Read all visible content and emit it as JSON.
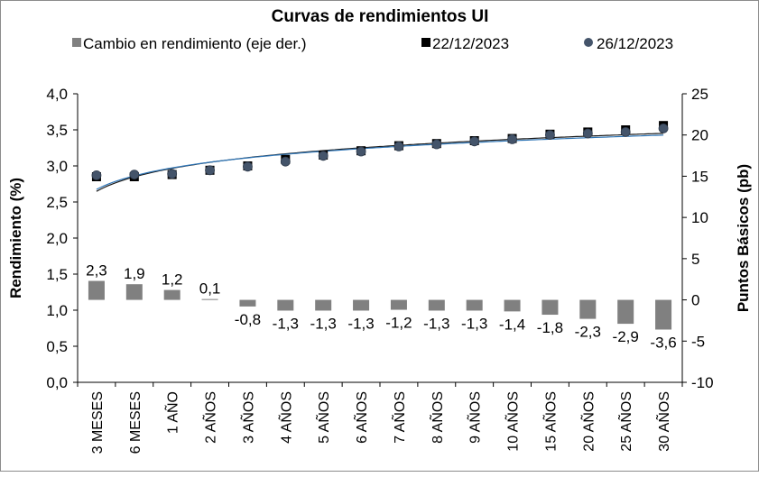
{
  "chart_data": {
    "type": "bar",
    "title": "Curvas de rendimientos UI",
    "ylabel": "Rendimiento (%)",
    "y2label": "Puntos Básicos (pb)",
    "ylim": [
      0,
      4
    ],
    "y2lim": [
      -10,
      25
    ],
    "ytick_labels": [
      "0,0",
      "0,5",
      "1,0",
      "1,5",
      "2,0",
      "2,5",
      "3,0",
      "3,5",
      "4,0"
    ],
    "y2tick_labels": [
      "-10",
      "-5",
      "0",
      "5",
      "10",
      "15",
      "20",
      "25"
    ],
    "categories": [
      "3 MESES",
      "6 MESES",
      "1 AÑO",
      "2 AÑOS",
      "3 AÑOS",
      "4 AÑOS",
      "5 AÑOS",
      "6 AÑOS",
      "7 AÑOS",
      "8 AÑOS",
      "9 AÑOS",
      "10 AÑOS",
      "15 AÑOS",
      "20 AÑOS",
      "25 AÑOS",
      "30 AÑOS"
    ],
    "legend": {
      "position": "top",
      "items": [
        {
          "label": "Cambio en rendimiento (eje der.)",
          "marker": "square",
          "color": "#808080"
        },
        {
          "label": "22/12/2023",
          "marker": "square",
          "color": "#000000"
        },
        {
          "label": "26/12/2023",
          "marker": "circle",
          "color": "#44546a"
        }
      ]
    },
    "series": [
      {
        "name": "Cambio en rendimiento (eje der.)",
        "type": "bar",
        "axis": "right",
        "color": "#808080",
        "values": [
          2.3,
          1.9,
          1.2,
          0.1,
          -0.8,
          -1.3,
          -1.3,
          -1.3,
          -1.2,
          -1.3,
          -1.3,
          -1.4,
          -1.8,
          -2.3,
          -2.9,
          -3.6
        ],
        "data_labels": [
          "2,3",
          "1,9",
          "1,2",
          "0,1",
          "-0,8",
          "-1,3",
          "-1,3",
          "-1,3",
          "-1,2",
          "-1,3",
          "-1,3",
          "-1,4",
          "-1,8",
          "-2,3",
          "-2,9",
          "-3,6"
        ]
      },
      {
        "name": "22/12/2023",
        "type": "scatter",
        "axis": "left",
        "marker": "square",
        "color": "#000000",
        "values": [
          2.85,
          2.85,
          2.88,
          2.94,
          3.0,
          3.09,
          3.15,
          3.21,
          3.28,
          3.31,
          3.35,
          3.38,
          3.44,
          3.47,
          3.5,
          3.56
        ]
      },
      {
        "name": "26/12/2023",
        "type": "scatter",
        "axis": "left",
        "marker": "circle",
        "color": "#44546a",
        "values": [
          2.87,
          2.88,
          2.89,
          2.94,
          2.99,
          3.06,
          3.14,
          3.2,
          3.27,
          3.3,
          3.34,
          3.37,
          3.43,
          3.45,
          3.47,
          3.52
        ]
      }
    ]
  }
}
